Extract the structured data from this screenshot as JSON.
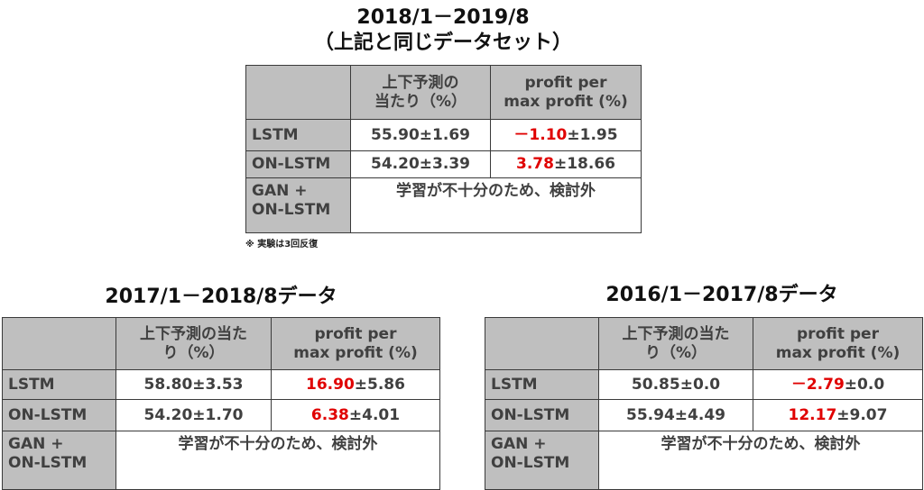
{
  "tables": [
    {
      "title": [
        "2018/1－2019/8",
        "（上記と同じデータセット）"
      ],
      "header": [
        [
          "上下予測の",
          "当たり（%）"
        ],
        [
          "profit per",
          "max profit (%)"
        ]
      ],
      "rows": [
        {
          "label": "LSTM",
          "accuracy": "55.90±1.69",
          "profit": {
            "highlight": "－1.10",
            "rest": "±1.95"
          }
        },
        {
          "label": "ON-LSTM",
          "accuracy": "54.20±3.39",
          "profit": {
            "highlight": "3.78",
            "rest": "±18.66"
          }
        }
      ],
      "merged_row": {
        "label": [
          "GAN +",
          "ON-LSTM"
        ],
        "note": "学習が不十分のため、検討外"
      },
      "footnote": "※ 実験は3回反復"
    },
    {
      "title": [
        "2017/1－2018/8データ"
      ],
      "header": [
        [
          "上下予測の当た",
          "り（%）"
        ],
        [
          "profit per",
          "max profit (%)"
        ]
      ],
      "rows": [
        {
          "label": "LSTM",
          "accuracy": "58.80±3.53",
          "profit": {
            "highlight": "16.90",
            "rest": "±5.86"
          }
        },
        {
          "label": "ON-LSTM",
          "accuracy": "54.20±1.70",
          "profit": {
            "highlight": "6.38",
            "rest": "±4.01"
          }
        }
      ],
      "merged_row": {
        "label": [
          "GAN +",
          "ON-LSTM"
        ],
        "note": "学習が不十分のため、検討外"
      }
    },
    {
      "title": [
        "2016/1－2017/8データ"
      ],
      "header": [
        [
          "上下予測の当た",
          "り（%）"
        ],
        [
          "profit per",
          "max profit (%)"
        ]
      ],
      "rows": [
        {
          "label": "LSTM",
          "accuracy": "50.85±0.0",
          "profit": {
            "highlight": "－2.79",
            "rest": "±0.0"
          }
        },
        {
          "label": "ON-LSTM",
          "accuracy": "55.94±4.49",
          "profit": {
            "highlight": "12.17",
            "rest": "±9.07"
          }
        }
      ],
      "merged_row": {
        "label": [
          "GAN +",
          "ON-LSTM"
        ],
        "note": "学習が不十分のため、検討外"
      }
    }
  ]
}
